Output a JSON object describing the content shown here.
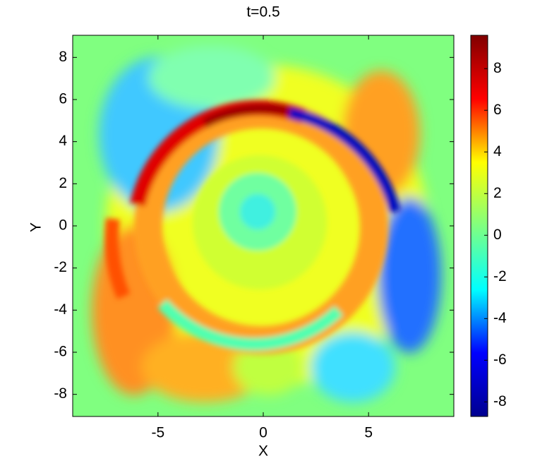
{
  "chart_data": {
    "type": "heatmap",
    "title": "t=0.5",
    "xlabel": "X",
    "ylabel": "Y",
    "xlim": [
      -9.05,
      9.05
    ],
    "ylim": [
      -9.05,
      9.05
    ],
    "xticks": [
      -5,
      0,
      5
    ],
    "yticks": [
      -8,
      -6,
      -4,
      -2,
      0,
      2,
      4,
      6,
      8
    ],
    "colormap": "jet",
    "colorbar": {
      "lim": [
        -8.7,
        9.6
      ],
      "ticks": [
        -8,
        -6,
        -4,
        -2,
        0,
        2,
        4,
        6,
        8
      ]
    }
  }
}
